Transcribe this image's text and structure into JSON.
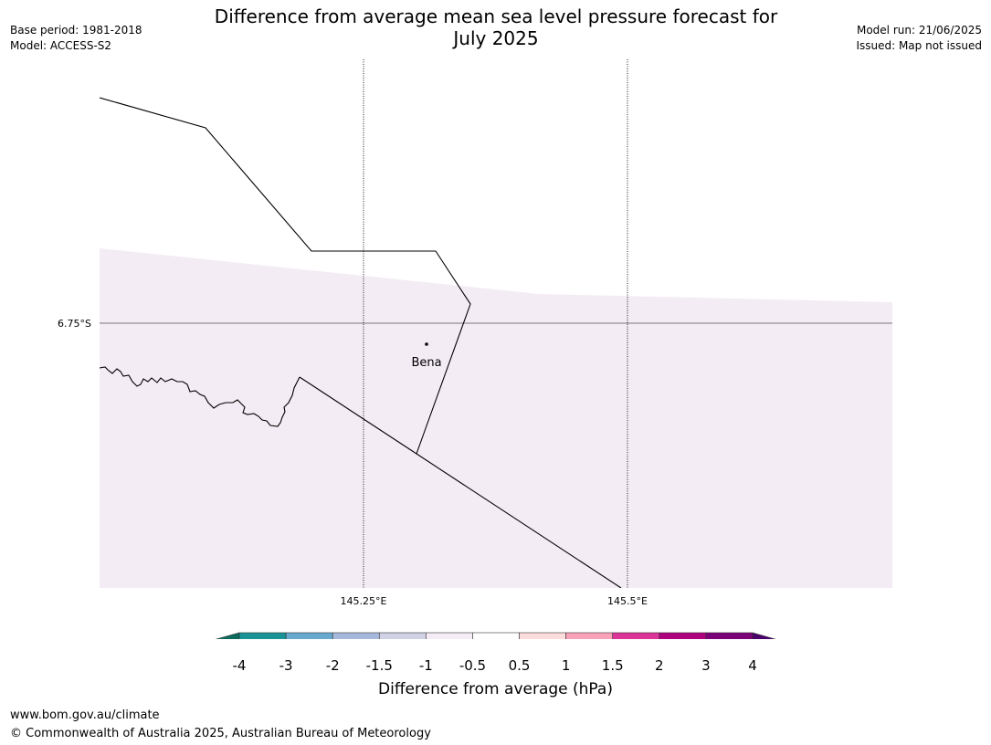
{
  "header": {
    "title_line1": "Difference from average mean sea level pressure forecast for",
    "title_line2": "July 2025",
    "base_period": "Base period: 1981-2018",
    "model": "Model: ACCESS-S2",
    "model_run": "Model run: 21/06/2025",
    "issued": "Issued: Map not issued"
  },
  "map": {
    "lat_labels": [
      "6.75°S"
    ],
    "lon_labels": [
      "145.25°E",
      "145.5°E"
    ],
    "place": "Bena",
    "shading_color": "#f4ecf4",
    "coast_color": "#000000"
  },
  "colorbar": {
    "title": "Difference from average (hPa)",
    "ticks": [
      "-4",
      "-3",
      "-2",
      "-1.5",
      "-1",
      "-0.5",
      "0.5",
      "1",
      "1.5",
      "2",
      "3",
      "4"
    ],
    "colors": [
      "#0d6b5e",
      "#1a9397",
      "#67a9cf",
      "#a6b8db",
      "#d0d1e6",
      "#f6ecf7",
      "#ffffff",
      "#fddcdc",
      "#f8a1b8",
      "#dd3497",
      "#ae017e",
      "#7a0177",
      "#49006a"
    ]
  },
  "footer": {
    "url": "www.bom.gov.au/climate",
    "copyright": "© Commonwealth of Australia 2025, Australian Bureau of Meteorology"
  }
}
